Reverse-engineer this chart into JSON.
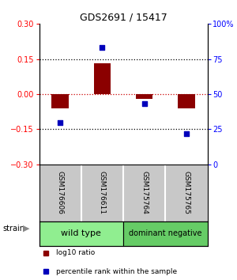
{
  "title": "GDS2691 / 15417",
  "samples": [
    "GSM176606",
    "GSM176611",
    "GSM175764",
    "GSM175765"
  ],
  "log10_ratio": [
    -0.06,
    0.13,
    -0.02,
    -0.06
  ],
  "percentile_rank": [
    30,
    83,
    43,
    22
  ],
  "bar_color": "#8B0000",
  "dot_color": "#0000BB",
  "ylim_left": [
    -0.3,
    0.3
  ],
  "ylim_right": [
    0,
    100
  ],
  "yticks_left": [
    -0.3,
    -0.15,
    0,
    0.15,
    0.3
  ],
  "yticks_right": [
    0,
    25,
    50,
    75,
    100
  ],
  "strain_label": "strain",
  "legend_items": [
    {
      "label": "log10 ratio",
      "color": "#8B0000"
    },
    {
      "label": "percentile rank within the sample",
      "color": "#0000BB"
    }
  ],
  "background_color": "#ffffff",
  "label_area_color": "#C8C8C8",
  "group1_color": "#90EE90",
  "group2_color": "#66CC66",
  "groups": [
    {
      "label": "wild type",
      "color": "#90EE90",
      "xmin": 0,
      "xmax": 2
    },
    {
      "label": "dominant negative",
      "color": "#66CC66",
      "xmin": 2,
      "xmax": 4
    }
  ]
}
